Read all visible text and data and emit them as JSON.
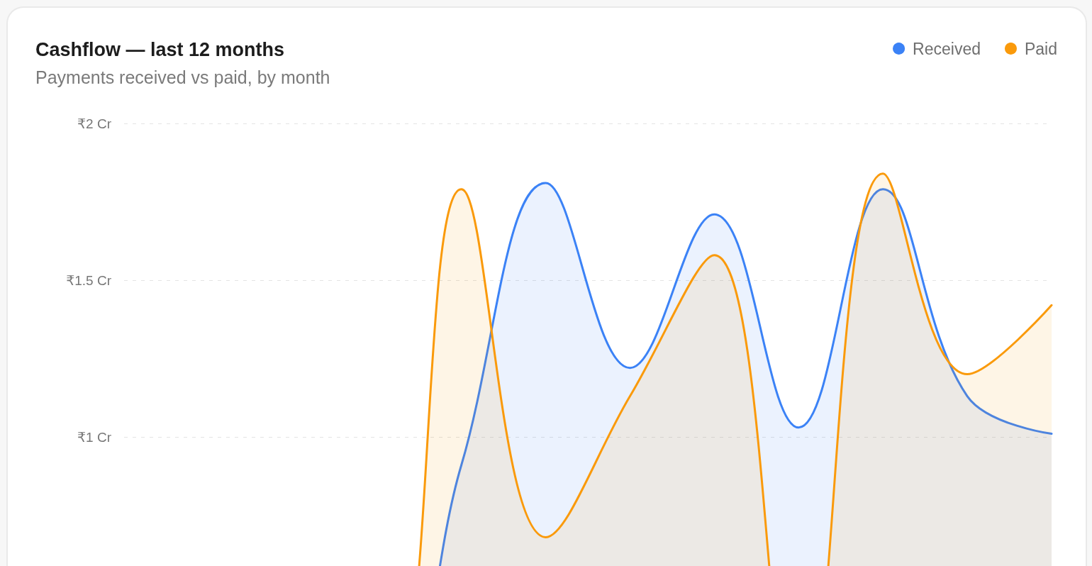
{
  "chart_data": {
    "type": "area",
    "title": "Cashflow — last 12 months",
    "subtitle": "Payments received vs paid, by month",
    "categories": [
      null,
      null,
      null,
      null,
      null,
      null,
      null,
      null,
      null,
      null,
      null,
      null
    ],
    "series": [
      {
        "name": "Received",
        "color": "#3b82f6",
        "values": [
          0,
          0,
          0,
          0,
          0.91,
          1.81,
          1.22,
          1.71,
          1.03,
          1.79,
          1.13,
          1.01
        ]
      },
      {
        "name": "Paid",
        "color": "#fa9a0b",
        "values": [
          0,
          0,
          0,
          0,
          1.79,
          0.68,
          1.13,
          1.58,
          0,
          1.84,
          1.2,
          1.42
        ]
      }
    ],
    "ylim": [
      0,
      2
    ],
    "yticks": [
      {
        "value": 1,
        "label": "₹1 Cr"
      },
      {
        "value": 1.5,
        "label": "₹1.5 Cr"
      },
      {
        "value": 2,
        "label": "₹2 Cr"
      }
    ],
    "grid": "y",
    "legend": "top right",
    "marker": "none",
    "line_style": "solid",
    "tick_labels": "y"
  }
}
